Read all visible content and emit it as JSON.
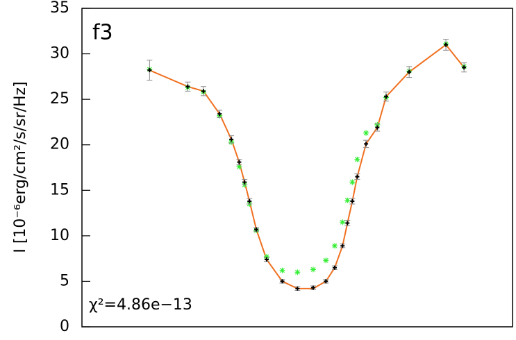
{
  "chart_data": {
    "type": "scatter",
    "annotations": [
      "f3",
      "χ²=4.86e−13"
    ],
    "y_label": "I [10⁻⁶erg/cm²/s/sr/Hz]",
    "xlim": [
      0,
      8.79
    ],
    "ylim": [
      0,
      35
    ],
    "yticks": [
      0,
      5,
      10,
      15,
      20,
      25,
      30,
      35
    ],
    "series": [
      {
        "kind": "line",
        "color": "#f07020",
        "x": [
          1.38,
          2.16,
          2.48,
          2.81,
          3.05,
          3.21,
          3.32,
          3.42,
          3.56,
          3.77,
          4.09,
          4.4,
          4.72,
          4.98,
          5.16,
          5.32,
          5.42,
          5.52,
          5.62,
          5.8,
          6.03,
          6.21,
          6.68,
          7.43,
          7.8
        ],
        "values": [
          28.2,
          26.4,
          25.9,
          23.4,
          20.6,
          18.1,
          15.9,
          13.8,
          10.7,
          7.4,
          5.0,
          4.2,
          4.2,
          5.0,
          6.5,
          8.9,
          11.4,
          13.8,
          16.5,
          20.1,
          21.9,
          25.3,
          28.0,
          31.0,
          28.5
        ]
      },
      {
        "kind": "star",
        "color": "#33ee33",
        "x": [
          1.38,
          2.16,
          2.48,
          2.81,
          3.05,
          3.21,
          3.32,
          3.42,
          3.56,
          3.77,
          4.09,
          4.4,
          4.72,
          4.98,
          5.16,
          5.32,
          5.42,
          5.52,
          5.62,
          5.8,
          6.03,
          6.21,
          6.68,
          7.43,
          7.8
        ],
        "values": [
          28.3,
          26.3,
          25.8,
          23.2,
          20.3,
          17.6,
          15.6,
          13.5,
          10.6,
          7.7,
          6.2,
          6.0,
          6.3,
          7.3,
          8.9,
          11.5,
          13.9,
          15.9,
          18.4,
          21.3,
          22.2,
          25.2,
          28.1,
          31.1,
          28.6
        ]
      },
      {
        "kind": "errorbar",
        "color": "#000000",
        "error_color": "#888888",
        "x": [
          1.38,
          2.16,
          2.48,
          2.81,
          3.05,
          3.21,
          3.32,
          3.42,
          3.56,
          3.77,
          4.09,
          4.4,
          4.72,
          4.98,
          5.16,
          5.32,
          5.42,
          5.52,
          5.62,
          5.8,
          6.03,
          6.21,
          6.68,
          7.43,
          7.8
        ],
        "values": [
          28.2,
          26.4,
          25.9,
          23.4,
          20.6,
          18.1,
          15.9,
          13.8,
          10.7,
          7.4,
          5.0,
          4.2,
          4.3,
          5.0,
          6.5,
          8.9,
          11.4,
          13.8,
          16.5,
          20.1,
          21.9,
          25.3,
          28.0,
          31.0,
          28.5
        ],
        "errors": [
          1.1,
          0.5,
          0.5,
          0.4,
          0.4,
          0.3,
          0.3,
          0.3,
          0.2,
          0.2,
          0.2,
          0.2,
          0.2,
          0.2,
          0.2,
          0.2,
          0.3,
          0.3,
          0.3,
          0.4,
          0.4,
          0.5,
          0.6,
          0.6,
          0.5
        ]
      }
    ]
  }
}
